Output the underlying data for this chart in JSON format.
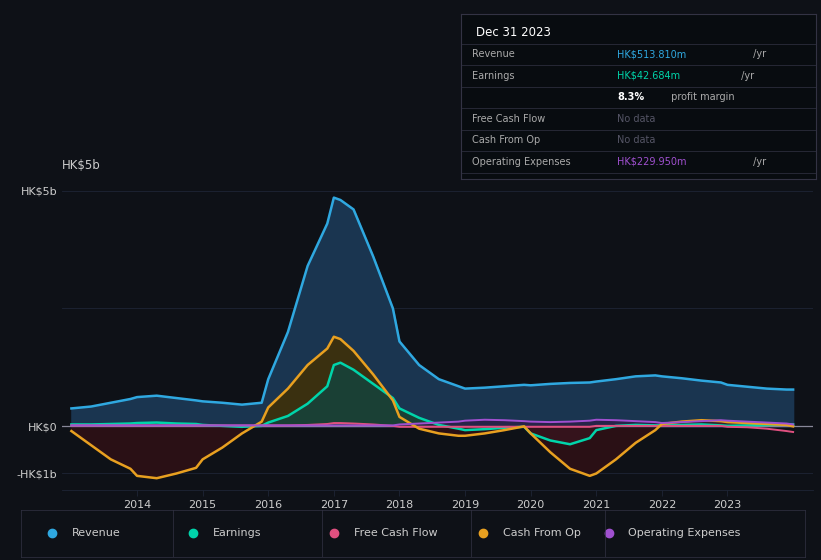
{
  "background_color": "#0e1117",
  "plot_bg_color": "#0e1117",
  "years": [
    2013.0,
    2013.3,
    2013.6,
    2013.9,
    2014.0,
    2014.3,
    2014.6,
    2014.9,
    2015.0,
    2015.3,
    2015.6,
    2015.9,
    2016.0,
    2016.3,
    2016.6,
    2016.9,
    2017.0,
    2017.1,
    2017.3,
    2017.6,
    2017.9,
    2018.0,
    2018.3,
    2018.6,
    2018.9,
    2019.0,
    2019.3,
    2019.6,
    2019.9,
    2020.0,
    2020.3,
    2020.6,
    2020.9,
    2021.0,
    2021.3,
    2021.6,
    2021.9,
    2022.0,
    2022.3,
    2022.6,
    2022.9,
    2023.0,
    2023.3,
    2023.6,
    2023.9,
    2024.0
  ],
  "revenue": [
    0.38,
    0.42,
    0.5,
    0.58,
    0.62,
    0.65,
    0.6,
    0.55,
    0.53,
    0.5,
    0.46,
    0.5,
    1.0,
    2.0,
    3.4,
    4.3,
    4.85,
    4.8,
    4.6,
    3.6,
    2.5,
    1.8,
    1.3,
    1.0,
    0.85,
    0.8,
    0.82,
    0.85,
    0.88,
    0.87,
    0.9,
    0.92,
    0.93,
    0.95,
    1.0,
    1.06,
    1.08,
    1.06,
    1.02,
    0.97,
    0.93,
    0.88,
    0.84,
    0.8,
    0.78,
    0.78
  ],
  "earnings": [
    0.04,
    0.04,
    0.05,
    0.06,
    0.07,
    0.08,
    0.06,
    0.05,
    0.03,
    0.01,
    -0.01,
    0.01,
    0.08,
    0.22,
    0.48,
    0.85,
    1.3,
    1.35,
    1.2,
    0.9,
    0.6,
    0.38,
    0.18,
    0.03,
    -0.05,
    -0.08,
    -0.06,
    -0.03,
    -0.01,
    -0.15,
    -0.3,
    -0.38,
    -0.25,
    -0.08,
    0.01,
    0.03,
    0.02,
    0.02,
    0.03,
    0.04,
    0.02,
    0.01,
    0.02,
    0.03,
    0.04,
    0.04
  ],
  "free_cash_flow": [
    0.02,
    0.02,
    0.02,
    0.02,
    0.02,
    0.02,
    0.02,
    0.02,
    0.02,
    0.02,
    0.02,
    0.02,
    0.02,
    0.02,
    0.03,
    0.05,
    0.07,
    0.07,
    0.06,
    0.04,
    0.01,
    -0.01,
    -0.01,
    -0.01,
    -0.01,
    -0.01,
    -0.01,
    -0.01,
    -0.01,
    -0.01,
    -0.01,
    -0.01,
    -0.01,
    0.01,
    0.01,
    0.01,
    0.01,
    0.01,
    0.01,
    0.01,
    0.01,
    -0.01,
    -0.02,
    -0.05,
    -0.1,
    -0.12
  ],
  "cash_from_op": [
    -0.1,
    -0.4,
    -0.7,
    -0.9,
    -1.05,
    -1.1,
    -1.0,
    -0.88,
    -0.7,
    -0.45,
    -0.15,
    0.1,
    0.4,
    0.8,
    1.3,
    1.65,
    1.9,
    1.85,
    1.6,
    1.1,
    0.55,
    0.2,
    -0.05,
    -0.15,
    -0.2,
    -0.2,
    -0.15,
    -0.08,
    0.0,
    -0.15,
    -0.55,
    -0.9,
    -1.05,
    -1.0,
    -0.7,
    -0.35,
    -0.08,
    0.05,
    0.1,
    0.13,
    0.11,
    0.09,
    0.07,
    0.05,
    0.03,
    0.0
  ],
  "operating_expenses": [
    0.02,
    0.02,
    0.02,
    0.02,
    0.02,
    0.02,
    0.02,
    0.02,
    0.02,
    0.02,
    0.02,
    0.02,
    0.02,
    0.02,
    0.02,
    0.02,
    0.02,
    0.02,
    0.02,
    0.02,
    0.02,
    0.04,
    0.06,
    0.08,
    0.1,
    0.12,
    0.14,
    0.13,
    0.11,
    0.1,
    0.09,
    0.1,
    0.12,
    0.14,
    0.13,
    0.11,
    0.09,
    0.07,
    0.09,
    0.11,
    0.13,
    0.12,
    0.1,
    0.08,
    0.06,
    0.04
  ],
  "revenue_line_color": "#2fa8e0",
  "earnings_line_color": "#00d4aa",
  "free_cash_flow_line_color": "#e05080",
  "cash_from_op_line_color": "#e8a020",
  "operating_expenses_line_color": "#a050d0",
  "revenue_fill_color": "#1a3550",
  "earnings_fill_pos_color": "#1a4035",
  "earnings_fill_neg_color": "#3a1520",
  "cash_from_op_pos_color": "#3a3010",
  "cash_from_op_neg_color": "#2a1015",
  "op_exp_fill_color": "#301a45",
  "ylim_min": -1.35,
  "ylim_max": 5.3,
  "xlim_min": 2012.85,
  "xlim_max": 2024.3,
  "ytick_vals": [
    -1.0,
    0.0,
    5.0
  ],
  "ytick_labels": [
    "-HK$1b",
    "HK$0",
    "HK$5b"
  ],
  "xtick_vals": [
    2014,
    2015,
    2016,
    2017,
    2018,
    2019,
    2020,
    2021,
    2022,
    2023
  ],
  "hk5b_label": "HK$5b",
  "text_color": "#cccccc",
  "grid_color": "#1e2535",
  "zero_line_color": "#888899",
  "info_box_bg": "#080c10",
  "info_box_border": "#333344",
  "info_date": "Dec 31 2023",
  "info_rows": [
    {
      "label": "Revenue",
      "value": "HK$513.810m",
      "vcolor": "#2fa8e0",
      "suffix": " /yr",
      "bold_val": false,
      "indent": false
    },
    {
      "label": "Earnings",
      "value": "HK$42.684m",
      "vcolor": "#00d4aa",
      "suffix": " /yr",
      "bold_val": false,
      "indent": false
    },
    {
      "label": "",
      "value": "8.3%",
      "vcolor": "#ffffff",
      "suffix": " profit margin",
      "bold_val": true,
      "indent": true
    },
    {
      "label": "Free Cash Flow",
      "value": "No data",
      "vcolor": "#555566",
      "suffix": "",
      "bold_val": false,
      "indent": false
    },
    {
      "label": "Cash From Op",
      "value": "No data",
      "vcolor": "#555566",
      "suffix": "",
      "bold_val": false,
      "indent": false
    },
    {
      "label": "Operating Expenses",
      "value": "HK$229.950m",
      "vcolor": "#a050d0",
      "suffix": " /yr",
      "bold_val": false,
      "indent": false
    }
  ],
  "legend_items": [
    {
      "label": "Revenue",
      "color": "#2fa8e0"
    },
    {
      "label": "Earnings",
      "color": "#00d4aa"
    },
    {
      "label": "Free Cash Flow",
      "color": "#e05080"
    },
    {
      "label": "Cash From Op",
      "color": "#e8a020"
    },
    {
      "label": "Operating Expenses",
      "color": "#a050d0"
    }
  ]
}
